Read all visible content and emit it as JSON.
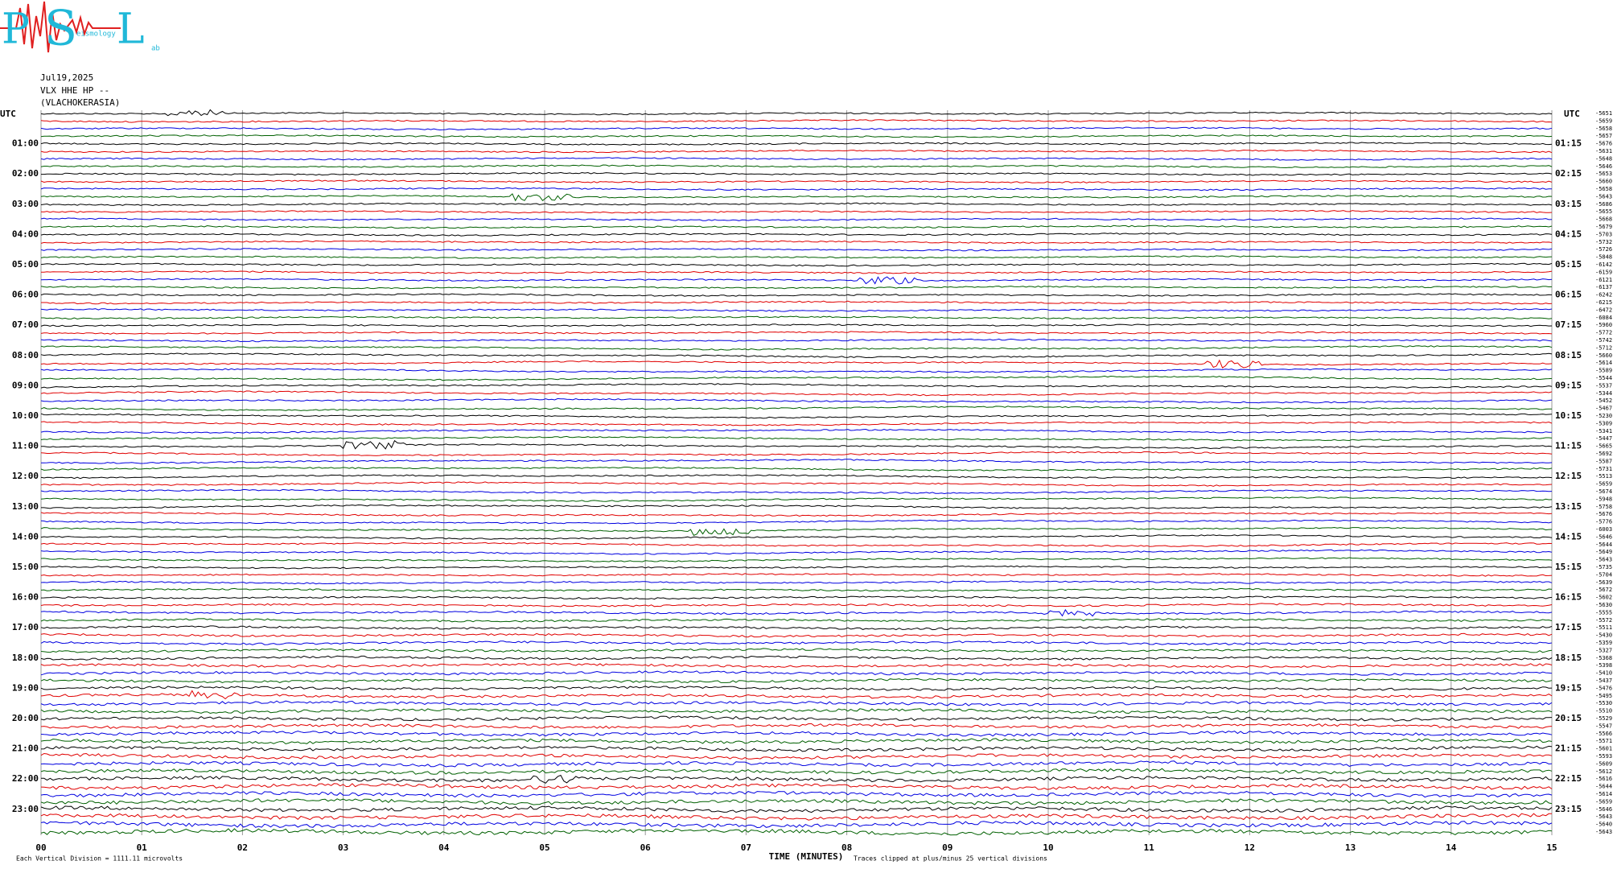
{
  "logo": {
    "letters": [
      "P",
      "S",
      "L"
    ],
    "words": [
      "eismology",
      "ab"
    ]
  },
  "header": {
    "date": "Jul19,2025",
    "channel": "VLX HHE HP --",
    "station": "(VLACHOKERASIA)"
  },
  "left_axis": {
    "title": "UTC",
    "labels": [
      "01:00",
      "02:00",
      "03:00",
      "04:00",
      "05:00",
      "06:00",
      "07:00",
      "08:00",
      "09:00",
      "10:00",
      "11:00",
      "12:00",
      "13:00",
      "14:00",
      "15:00",
      "16:00",
      "17:00",
      "18:00",
      "19:00",
      "20:00",
      "21:00",
      "22:00",
      "23:00"
    ]
  },
  "right_axis": {
    "title": "UTC",
    "labels": [
      "01:15",
      "02:15",
      "03:15",
      "04:15",
      "05:15",
      "06:15",
      "07:15",
      "08:15",
      "09:15",
      "10:15",
      "11:15",
      "12:15",
      "13:15",
      "14:15",
      "15:15",
      "16:15",
      "17:15",
      "18:15",
      "19:15",
      "20:15",
      "21:15",
      "22:15",
      "23:15"
    ]
  },
  "trace_offsets": [
    -5651,
    -5659,
    -5658,
    -5657,
    -5676,
    -5631,
    -5648,
    -5646,
    -5653,
    -5660,
    -5658,
    -5643,
    -5686,
    -5655,
    -5668,
    -5679,
    -5703,
    -5732,
    -5726,
    -5848,
    -6142,
    -6159,
    -6121,
    -6137,
    -6242,
    -6215,
    -6472,
    -6084,
    -5960,
    -5772,
    -5742,
    -5712,
    -5660,
    -5614,
    -5589,
    -5544,
    -5537,
    -5344,
    -5452,
    -5467,
    -5230,
    -5309,
    -5341,
    -5447,
    -5665,
    -5692,
    -5587,
    -5731,
    -5513,
    -5659,
    -5674,
    -5948,
    -5758,
    -5676,
    -5776,
    -6003,
    -5646,
    -5644,
    -5649,
    -5643,
    -5735,
    -5704,
    -5639,
    -5672,
    -5602,
    -5630,
    -5555,
    -5572,
    -5511,
    -5430,
    -5359,
    -5327,
    -5368,
    -5398,
    -5410,
    -5437,
    -5476,
    -5495,
    -5530,
    -5510,
    -5529,
    -5547,
    -5566,
    -5571,
    -5601,
    -5593,
    -5609,
    -5612,
    -5616,
    -5644,
    -5614,
    -5659,
    -5646,
    -5643,
    -5640,
    -5643
  ],
  "trace_colors": [
    "#000000",
    "#e00000",
    "#0000e0",
    "#006000"
  ],
  "x_axis": {
    "title": "TIME (MINUTES)",
    "ticks": [
      "00",
      "01",
      "02",
      "03",
      "04",
      "05",
      "06",
      "07",
      "08",
      "09",
      "10",
      "11",
      "12",
      "13",
      "14",
      "15"
    ]
  },
  "footer": {
    "scale": "Each Vertical Division = 1111.11 microvolts",
    "clip": "Traces clipped at plus/minus 25 vertical divisions"
  }
}
